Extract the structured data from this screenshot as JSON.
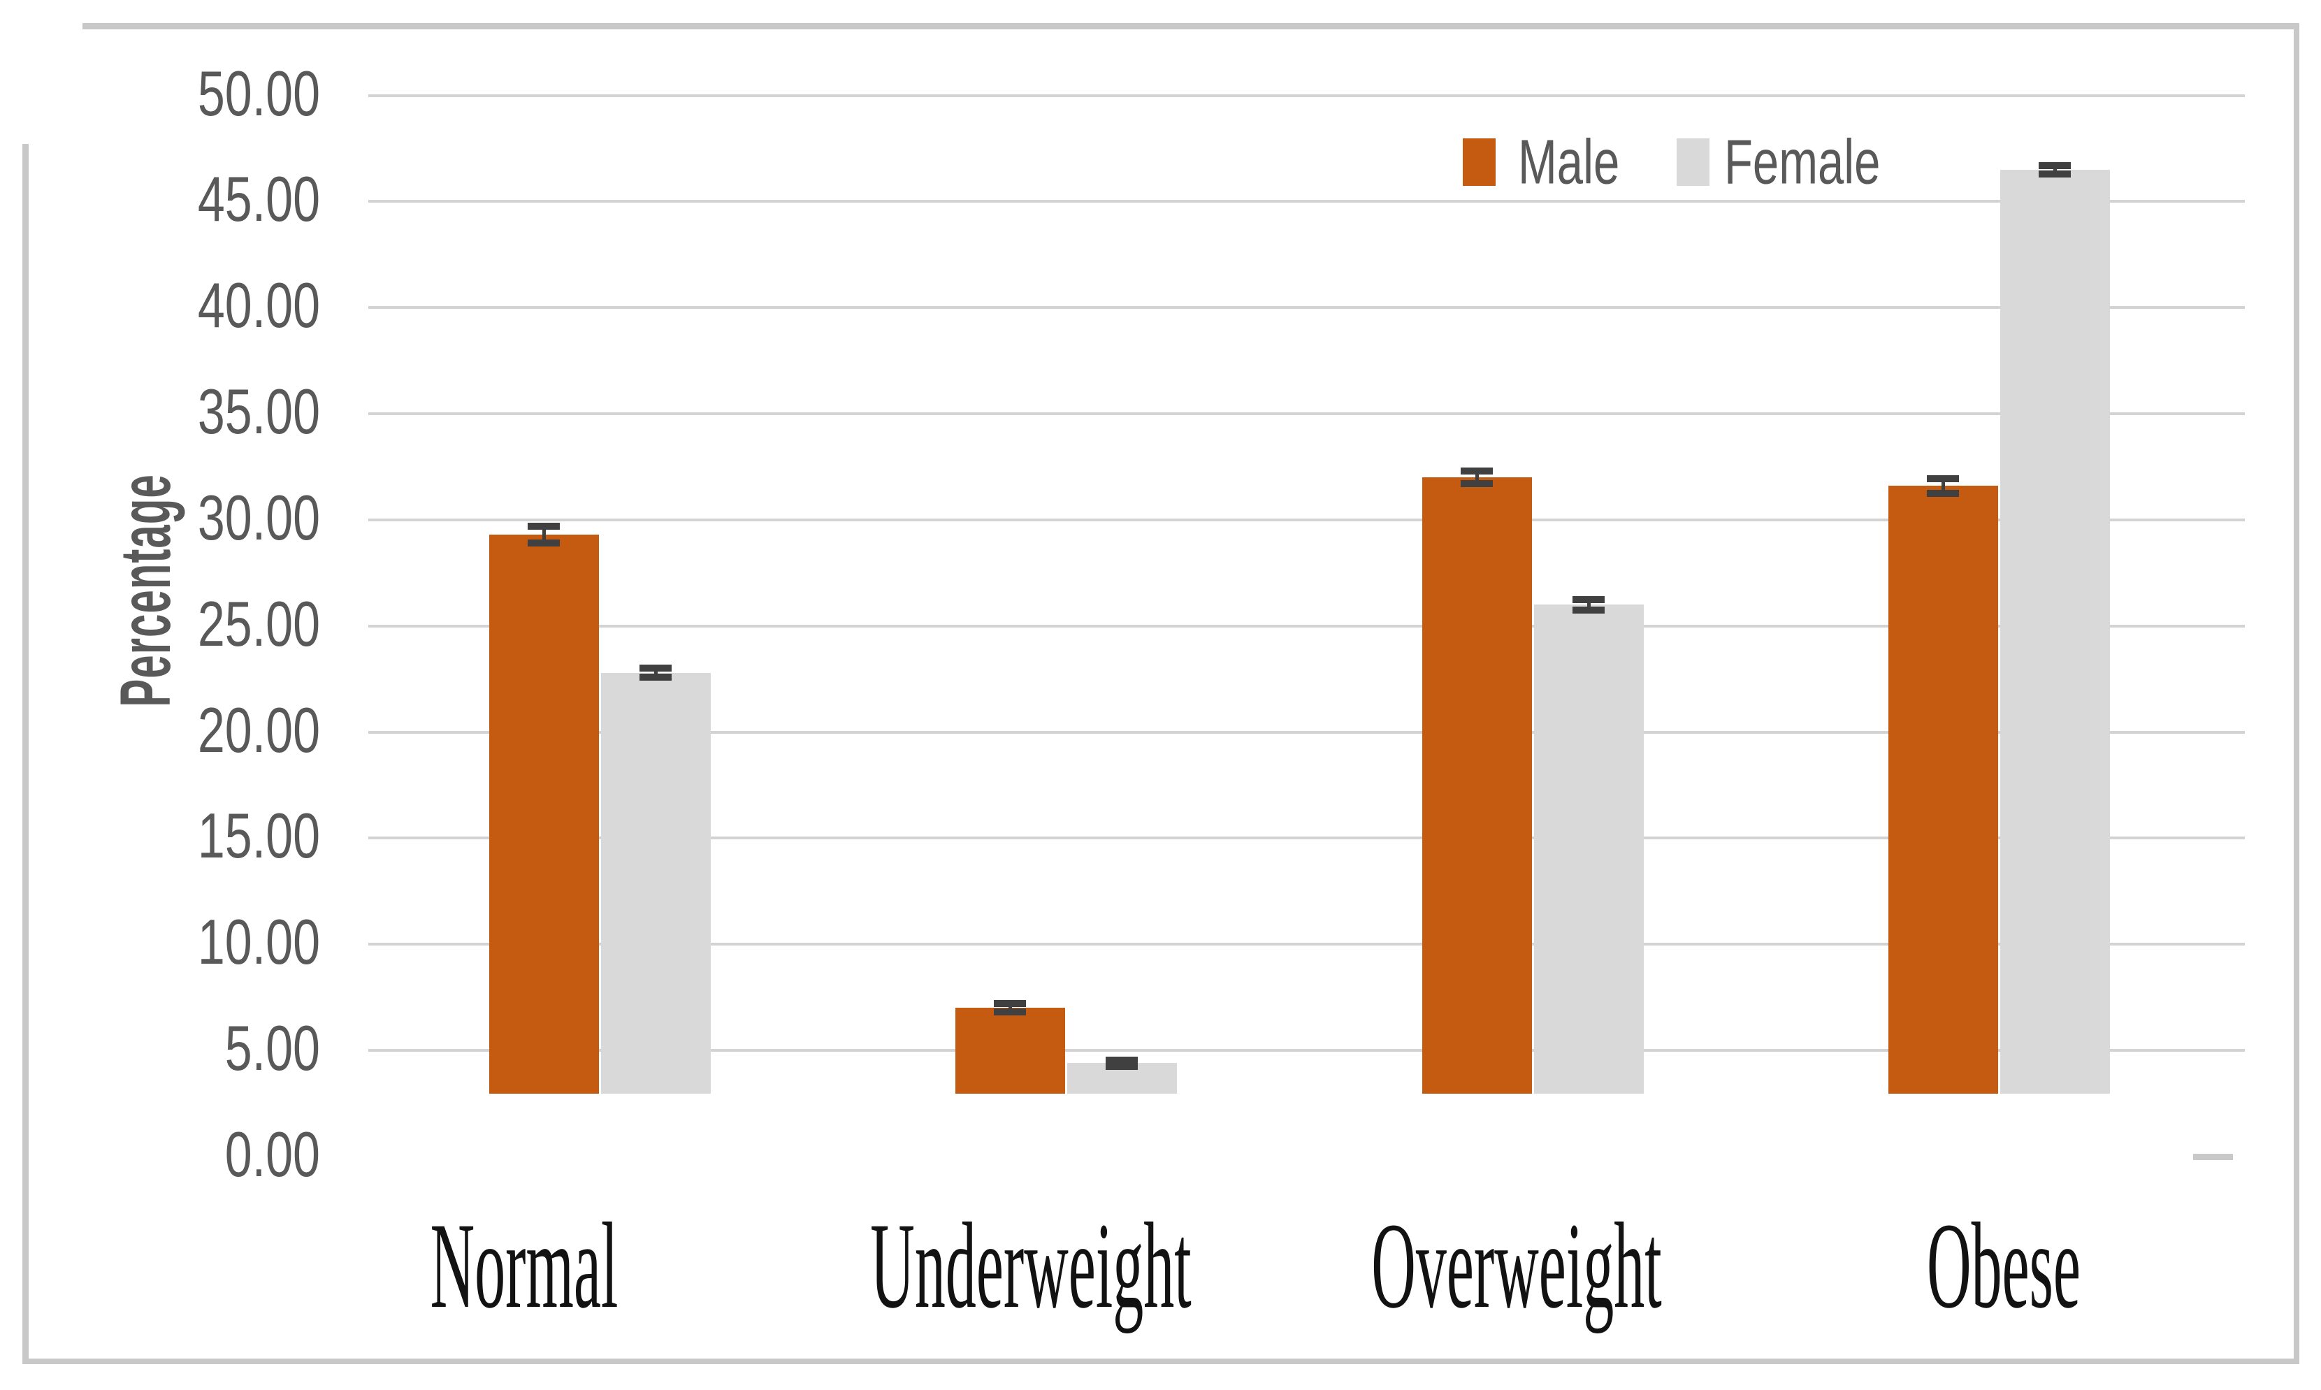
{
  "figure": {
    "background_color": "#FFFFFF",
    "border_color": "#C8C8C8"
  },
  "chart_data": {
    "type": "bar",
    "ylabel": "Percentage",
    "xlabel": "",
    "categories": [
      "Normal",
      "Underweight",
      "Overweight",
      "Obese"
    ],
    "series": [
      {
        "name": "Male",
        "color": "#C55A11",
        "values": [
          29.3,
          7.0,
          32.0,
          31.6
        ],
        "errors": [
          0.4,
          0.2,
          0.3,
          0.35
        ]
      },
      {
        "name": "Female",
        "color": "#D9D9D9",
        "values": [
          22.8,
          4.4,
          26.0,
          46.5
        ],
        "errors": [
          0.2,
          0.15,
          0.25,
          0.2
        ]
      }
    ],
    "error_bar_color": "#404040",
    "ylim": [
      0,
      50
    ],
    "y_ticks": [
      {
        "value": 50,
        "label": "50.00"
      },
      {
        "value": 45,
        "label": "45.00"
      },
      {
        "value": 40,
        "label": "40.00"
      },
      {
        "value": 35,
        "label": "35.00"
      },
      {
        "value": 30,
        "label": "30.00"
      },
      {
        "value": 25,
        "label": "25.00"
      },
      {
        "value": 20,
        "label": "20.00"
      },
      {
        "value": 15,
        "label": "15.00"
      },
      {
        "value": 10,
        "label": "10.00"
      },
      {
        "value": 5,
        "label": "5.00"
      },
      {
        "value": 0,
        "label": "0.00"
      }
    ],
    "gridlines": "horizontal",
    "gridline_color": "#D3D3D3",
    "legend_position": "top-right-inside",
    "axis_text_color": "#595959",
    "category_text_color": "#121212"
  }
}
